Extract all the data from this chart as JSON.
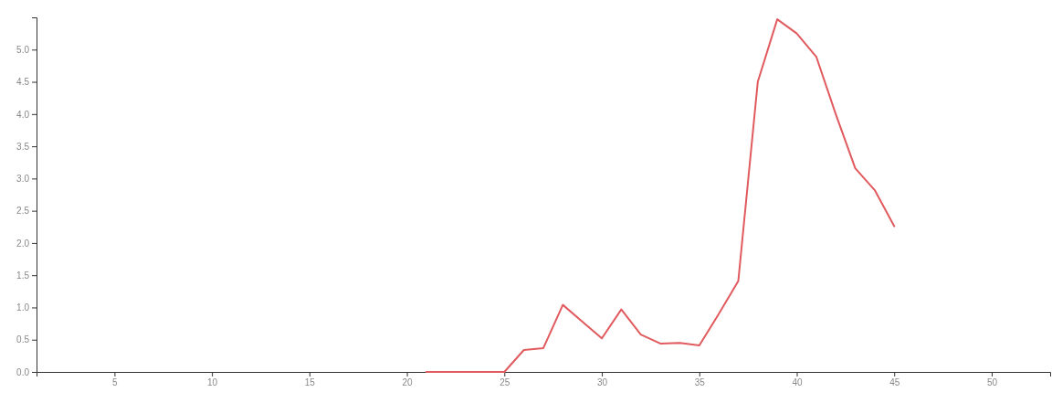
{
  "chart_data": {
    "type": "line",
    "x": [
      21,
      22,
      23,
      24,
      25,
      26,
      27,
      28,
      29,
      30,
      31,
      32,
      33,
      34,
      35,
      36,
      37,
      38,
      39,
      40,
      41,
      42,
      43,
      44,
      45
    ],
    "series": [
      {
        "color": "#e05a5e",
        "values": [
          0,
          0,
          0,
          0,
          0,
          0.34,
          0.37,
          1.04,
          0.78,
          0.52,
          0.97,
          0.58,
          0.44,
          0.45,
          0.41,
          0.9,
          1.41,
          4.5,
          5.47,
          5.25,
          4.89,
          4.0,
          3.16,
          2.82,
          2.26
        ]
      }
    ],
    "xlim": [
      1,
      53
    ],
    "xticks": [
      5,
      10,
      15,
      20,
      25,
      30,
      35,
      40,
      45,
      50
    ],
    "ylim": [
      0,
      5.5
    ],
    "yticks": [
      {
        "value": 0,
        "label": "0.0"
      },
      {
        "value": 0.5,
        "label": "0.5"
      },
      {
        "value": 1,
        "label": "1.0"
      },
      {
        "value": 1.5,
        "label": "1.5"
      },
      {
        "value": 2,
        "label": "2.0"
      },
      {
        "value": 2.5,
        "label": "2.5"
      },
      {
        "value": 3,
        "label": "3.0"
      },
      {
        "value": 3.5,
        "label": "3.5"
      },
      {
        "value": 4,
        "label": "4.0"
      },
      {
        "value": 4.5,
        "label": "4.5"
      },
      {
        "value": 5,
        "label": "5.0"
      }
    ],
    "grid": false,
    "marker": "none",
    "line_style": "solid"
  }
}
